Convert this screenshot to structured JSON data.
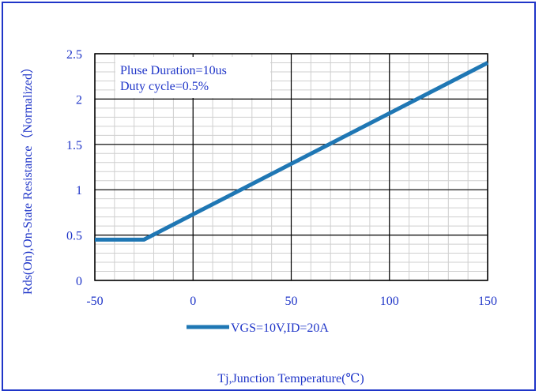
{
  "chart_data": {
    "type": "line",
    "xlabel": "Tj,Junction Temperature(℃)",
    "ylabel": "Rds(On),On-State Resistance（Normalized）",
    "xlim": [
      -50,
      150
    ],
    "ylim": [
      0,
      2.5
    ],
    "x_ticks": [
      "-50",
      "0",
      "50",
      "100",
      "150"
    ],
    "y_ticks": [
      "0",
      "0.5",
      "1",
      "1.5",
      "2",
      "2.5"
    ],
    "x_tick_values": [
      -50,
      0,
      50,
      100,
      150
    ],
    "y_tick_values": [
      0,
      0.5,
      1,
      1.5,
      2,
      2.5
    ],
    "grid": true,
    "annotations": [
      "Pluse Duration=10us",
      "Duty cycle=0.5%"
    ],
    "legend_placement": "bottom",
    "series": [
      {
        "name": "VGS=10V,ID=20A",
        "color": "#1f77b4",
        "x": [
          -50,
          -25,
          150
        ],
        "y": [
          0.45,
          0.45,
          2.4
        ]
      }
    ]
  },
  "colors": {
    "text": "#1f35c8",
    "frame": "#1f35c8",
    "line": "#1f77b4",
    "grid_major": "#000000",
    "grid_minor": "#cfcfcf"
  }
}
